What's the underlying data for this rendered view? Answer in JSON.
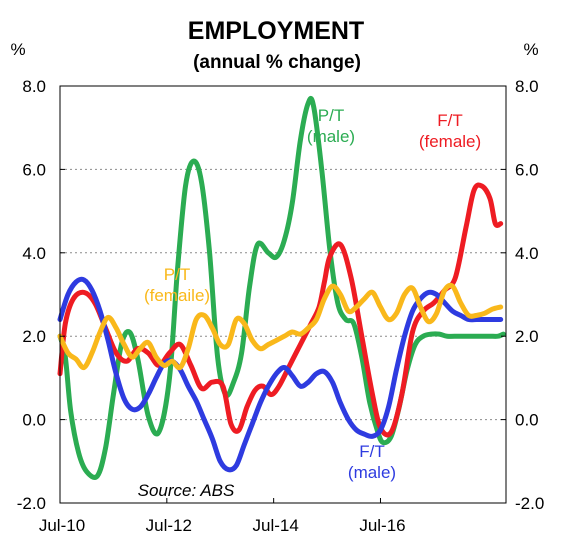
{
  "chart_data": {
    "type": "line",
    "title": "EMPLOYMENT",
    "subtitle": "(annual % change)",
    "ylabel_left": "%",
    "ylabel_right": "%",
    "source": "Source: ABS",
    "ylim": [
      -2.0,
      8.0
    ],
    "yticks": [
      "-2.0",
      "0.0",
      "2.0",
      "4.0",
      "6.0",
      "8.0"
    ],
    "yticks_right": [
      "-2.0",
      "0.0",
      "2.0",
      "4.0",
      "6.0",
      "8.0"
    ],
    "ytick_values": [
      -2,
      0,
      2,
      4,
      6,
      8
    ],
    "xlim": [
      2010.5,
      2018.85
    ],
    "xticks": [
      "Jul-10",
      "Jul-12",
      "Jul-14",
      "Jul-16"
    ],
    "xtick_values": [
      2010.5,
      2012.5,
      2014.5,
      2016.5
    ],
    "grid": "horizontal dashed",
    "series": [
      {
        "name": "P/T (male)",
        "color": "#2bac52",
        "x": [
          2010.5,
          2010.6,
          2010.7,
          2010.85,
          2011.0,
          2011.2,
          2011.35,
          2011.5,
          2011.65,
          2011.8,
          2011.95,
          2012.15,
          2012.35,
          2012.55,
          2012.7,
          2012.85,
          2013.0,
          2013.15,
          2013.3,
          2013.45,
          2013.6,
          2013.75,
          2013.9,
          2014.05,
          2014.2,
          2014.4,
          2014.55,
          2014.7,
          2014.85,
          2015.0,
          2015.15,
          2015.25,
          2015.4,
          2015.55,
          2015.7,
          2015.85,
          2016.0,
          2016.15,
          2016.3,
          2016.45,
          2016.55,
          2016.7,
          2016.85,
          2017.0,
          2017.15,
          2017.3,
          2017.45,
          2017.6,
          2017.75,
          2017.95,
          2018.1,
          2018.25,
          2018.4,
          2018.55,
          2018.7,
          2018.8
        ],
        "values": [
          2.0,
          1.5,
          0.2,
          -0.8,
          -1.25,
          -1.35,
          -0.7,
          0.6,
          1.8,
          2.1,
          1.5,
          0.1,
          -0.3,
          1.0,
          3.6,
          5.6,
          6.2,
          5.7,
          4.0,
          1.5,
          0.6,
          0.9,
          1.6,
          3.2,
          4.2,
          4.0,
          3.9,
          4.3,
          5.2,
          6.7,
          7.6,
          7.5,
          6.0,
          4.1,
          2.8,
          2.4,
          2.3,
          1.5,
          0.4,
          -0.3,
          -0.55,
          -0.4,
          0.3,
          1.2,
          1.8,
          2.0,
          2.05,
          2.05,
          2.0,
          2.0,
          2.0,
          2.0,
          2.0,
          2.0,
          2.0,
          2.05
        ]
      },
      {
        "name": "F/T (female)",
        "color": "#ee1c23",
        "x": [
          2010.5,
          2010.6,
          2010.75,
          2010.95,
          2011.15,
          2011.35,
          2011.55,
          2011.75,
          2011.95,
          2012.15,
          2012.35,
          2012.55,
          2012.75,
          2012.95,
          2013.15,
          2013.35,
          2013.55,
          2013.7,
          2013.85,
          2014.0,
          2014.15,
          2014.3,
          2014.45,
          2014.6,
          2014.8,
          2015.0,
          2015.2,
          2015.35,
          2015.45,
          2015.55,
          2015.75,
          2015.95,
          2016.15,
          2016.35,
          2016.5,
          2016.7,
          2016.9,
          2017.1,
          2017.3,
          2017.5,
          2017.7,
          2017.9,
          2018.1,
          2018.25,
          2018.4,
          2018.55,
          2018.65,
          2018.75
        ],
        "values": [
          1.1,
          2.3,
          2.9,
          3.05,
          2.8,
          2.2,
          1.6,
          1.4,
          1.7,
          1.6,
          1.3,
          1.6,
          1.8,
          1.3,
          0.75,
          0.9,
          0.8,
          -0.1,
          -0.25,
          0.3,
          0.7,
          0.8,
          0.6,
          0.8,
          1.3,
          1.8,
          2.3,
          2.7,
          3.3,
          3.9,
          4.2,
          3.4,
          2.0,
          0.6,
          -0.2,
          -0.3,
          0.6,
          2.1,
          2.6,
          2.8,
          3.1,
          3.4,
          4.6,
          5.5,
          5.6,
          5.3,
          4.7,
          4.7
        ]
      },
      {
        "name": "P/T (female)",
        "color": "#f9b81b",
        "x": [
          2010.5,
          2010.65,
          2010.8,
          2010.95,
          2011.1,
          2011.25,
          2011.4,
          2011.55,
          2011.7,
          2011.85,
          2012.0,
          2012.15,
          2012.3,
          2012.45,
          2012.6,
          2012.75,
          2012.9,
          2013.05,
          2013.2,
          2013.35,
          2013.5,
          2013.65,
          2013.8,
          2013.95,
          2014.1,
          2014.25,
          2014.4,
          2014.55,
          2014.7,
          2014.85,
          2015.0,
          2015.15,
          2015.3,
          2015.45,
          2015.6,
          2015.75,
          2015.9,
          2016.05,
          2016.2,
          2016.35,
          2016.5,
          2016.65,
          2016.8,
          2016.95,
          2017.1,
          2017.25,
          2017.4,
          2017.55,
          2017.7,
          2017.85,
          2018.0,
          2018.15,
          2018.3,
          2018.45,
          2018.6,
          2018.75
        ],
        "values": [
          2.0,
          1.6,
          1.45,
          1.25,
          1.6,
          2.1,
          2.45,
          2.2,
          1.8,
          1.5,
          1.7,
          1.85,
          1.5,
          1.3,
          1.4,
          1.25,
          1.7,
          2.4,
          2.5,
          2.2,
          1.8,
          1.8,
          2.4,
          2.3,
          1.9,
          1.7,
          1.8,
          1.9,
          2.0,
          2.1,
          2.05,
          2.2,
          2.4,
          2.9,
          3.2,
          3.0,
          2.6,
          2.7,
          2.9,
          3.05,
          2.7,
          2.4,
          2.55,
          3.0,
          3.15,
          2.7,
          2.35,
          2.55,
          3.1,
          3.2,
          2.8,
          2.5,
          2.5,
          2.55,
          2.65,
          2.7
        ]
      },
      {
        "name": "F/T (male)",
        "color": "#2e3be0",
        "x": [
          2010.5,
          2010.65,
          2010.8,
          2010.95,
          2011.1,
          2011.25,
          2011.4,
          2011.55,
          2011.7,
          2011.85,
          2012.0,
          2012.15,
          2012.3,
          2012.45,
          2012.6,
          2012.75,
          2012.9,
          2013.05,
          2013.2,
          2013.35,
          2013.5,
          2013.65,
          2013.8,
          2013.95,
          2014.1,
          2014.25,
          2014.4,
          2014.55,
          2014.7,
          2014.85,
          2015.0,
          2015.15,
          2015.3,
          2015.45,
          2015.6,
          2015.75,
          2015.9,
          2016.05,
          2016.2,
          2016.35,
          2016.5,
          2016.65,
          2016.8,
          2016.95,
          2017.1,
          2017.25,
          2017.4,
          2017.55,
          2017.7,
          2017.85,
          2018.0,
          2018.15,
          2018.3,
          2018.45,
          2018.6,
          2018.75
        ],
        "values": [
          2.4,
          3.0,
          3.3,
          3.35,
          3.1,
          2.6,
          1.9,
          1.1,
          0.5,
          0.25,
          0.3,
          0.6,
          1.0,
          1.35,
          1.4,
          1.2,
          0.8,
          0.45,
          0.0,
          -0.45,
          -1.0,
          -1.2,
          -1.1,
          -0.6,
          -0.1,
          0.4,
          0.8,
          1.1,
          1.25,
          1.05,
          0.8,
          0.9,
          1.1,
          1.15,
          0.9,
          0.4,
          0.0,
          -0.25,
          -0.35,
          -0.4,
          -0.25,
          0.3,
          1.2,
          2.0,
          2.6,
          2.9,
          3.05,
          3.0,
          2.8,
          2.6,
          2.5,
          2.4,
          2.4,
          2.4,
          2.4,
          2.4
        ]
      }
    ],
    "annotations": [
      {
        "lines": [
          "P/T",
          "(male)"
        ],
        "series": 0
      },
      {
        "lines": [
          "F/T",
          "(female)"
        ],
        "series": 1
      },
      {
        "lines": [
          "P/T",
          "(femaile)"
        ],
        "series": 2
      },
      {
        "lines": [
          "F/T",
          "(male)"
        ],
        "series": 3
      }
    ]
  }
}
